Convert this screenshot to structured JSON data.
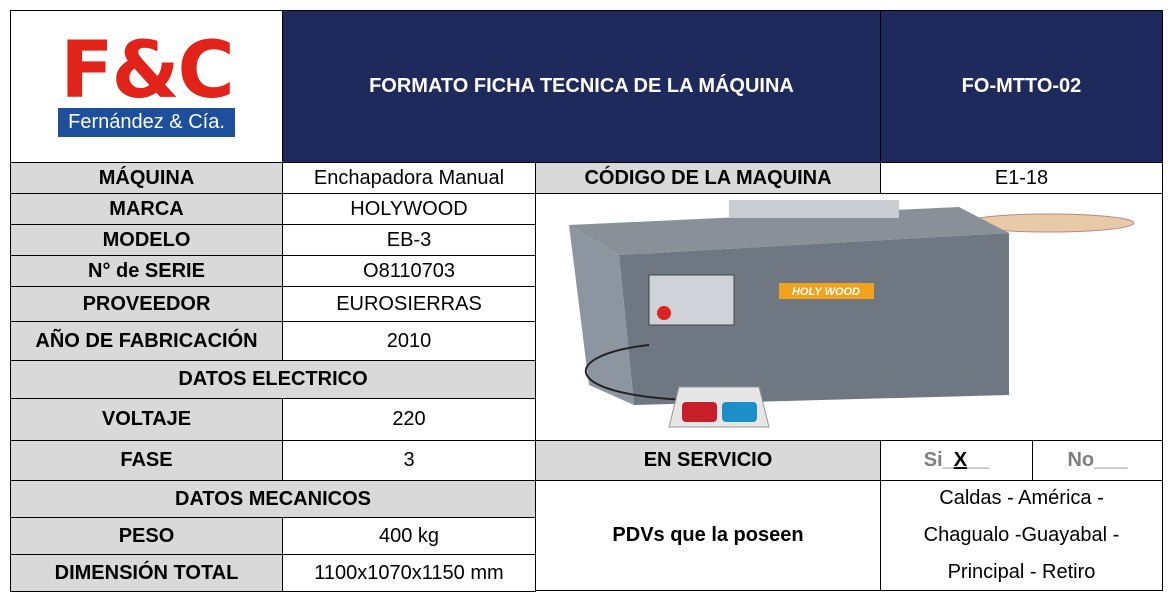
{
  "header": {
    "logo_main": "F&C",
    "logo_sub": "Fernández & Cía.",
    "title": "FORMATO FICHA TECNICA DE LA MÁQUINA",
    "code": "FO-MTTO-02"
  },
  "machine": {
    "label": "MÁQUINA",
    "value": "Enchapadora Manual",
    "code_label": "CÓDIGO DE LA MAQUINA",
    "code_value": "E1-18"
  },
  "rows": [
    [
      "MARCA",
      "HOLYWOOD"
    ],
    [
      "MODELO",
      "EB-3"
    ],
    [
      "N° de SERIE",
      "O8110703"
    ],
    [
      "PROVEEDOR",
      "EUROSIERRAS"
    ],
    [
      "AÑO DE FABRICACIÓN",
      "2010"
    ]
  ],
  "electric": {
    "title": "DATOS ELECTRICO",
    "rows": [
      [
        "VOLTAJE",
        "220"
      ],
      [
        "FASE",
        "3"
      ]
    ]
  },
  "mechanical": {
    "title": "DATOS MECANICOS",
    "rows": [
      [
        "PESO",
        "400 kg"
      ],
      [
        "DIMENSIÓN TOTAL",
        "1100x1070x1150 mm"
      ]
    ]
  },
  "service": {
    "label": "EN SERVICIO",
    "si_prefix": "Si_",
    "si_mark": "X",
    "si_suffix": "__",
    "no": "No___"
  },
  "pdvs": {
    "label": "PDVs que la poseen",
    "lines": [
      "Caldas - América -",
      "Chagualo -Guayabal -",
      "Principal - Retiro"
    ]
  },
  "image": {
    "brand": "HOLY WOOD"
  }
}
